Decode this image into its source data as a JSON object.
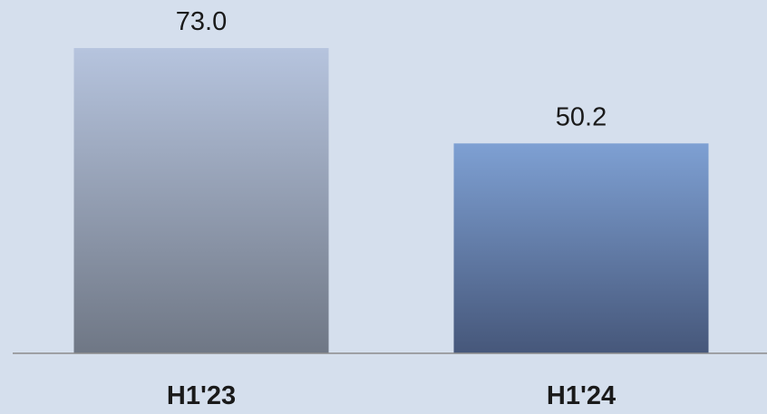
{
  "chart_data": {
    "type": "bar",
    "categories": [
      "H1'23",
      "H1'24"
    ],
    "values": [
      73.0,
      50.2
    ],
    "value_labels": [
      "73.0",
      "50.2"
    ],
    "title": "",
    "xlabel": "",
    "ylabel": "",
    "ylim": [
      0,
      78
    ],
    "grid": false,
    "legend": "none",
    "axis_color": "#8c8c8c",
    "background_color": "#d5dfed",
    "bar_colors": [
      {
        "top": "#b6c4de",
        "bottom": "#6f7785"
      },
      {
        "top": "#7ea0d3",
        "bottom": "#46577a"
      }
    ]
  }
}
